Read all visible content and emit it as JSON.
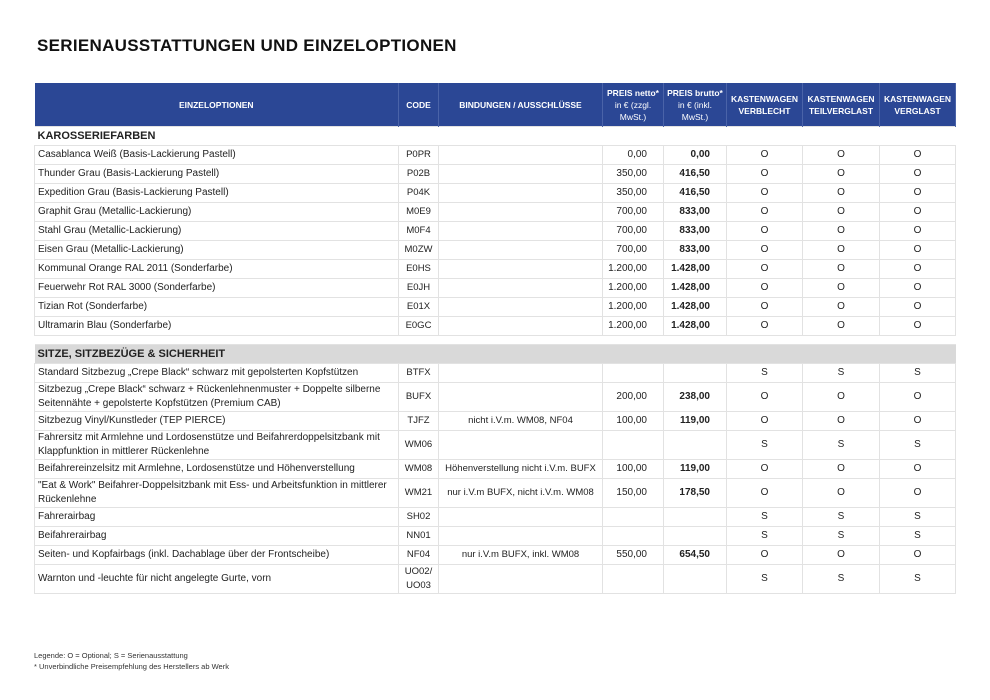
{
  "header": {
    "title": "SERIENAUSSTATTUNGEN UND EINZELOPTIONEN"
  },
  "table": {
    "headers": [
      {
        "label": "EINZELOPTIONEN"
      },
      {
        "label": "CODE"
      },
      {
        "label": "BINDUNGEN / AUSSCHLÜSSE"
      },
      {
        "label": "PREIS netto*",
        "note": "in € (zzgl. MwSt.)"
      },
      {
        "label": "PREIS brutto*",
        "note": "in € (inkl. MwSt.)"
      },
      {
        "label": "KASTENWAGEN VERBLECHT"
      },
      {
        "label": "KASTENWAGEN TEILVERGLAST"
      },
      {
        "label": "KASTENWAGEN VERGLAST"
      }
    ],
    "sections": [
      {
        "title": "KAROSSERIEFARBEN",
        "rows": [
          [
            "Casablanca Weiß (Basis-Lackierung Pastell)",
            "P0PR",
            null,
            "0,00",
            "0,00",
            "O",
            "O",
            "O"
          ],
          [
            "Thunder Grau (Basis-Lackierung Pastell)",
            "P02B",
            null,
            "350,00",
            "416,50",
            "O",
            "O",
            "O"
          ],
          [
            "Expedition Grau (Basis-Lackierung Pastell)",
            "P04K",
            null,
            "350,00",
            "416,50",
            "O",
            "O",
            "O"
          ],
          [
            "Graphit Grau (Metallic-Lackierung)",
            "M0E9",
            null,
            "700,00",
            "833,00",
            "O",
            "O",
            "O"
          ],
          [
            "Stahl Grau (Metallic-Lackierung)",
            "M0F4",
            null,
            "700,00",
            "833,00",
            "O",
            "O",
            "O"
          ],
          [
            "Eisen Grau (Metallic-Lackierung)",
            "M0ZW",
            null,
            "700,00",
            "833,00",
            "O",
            "O",
            "O"
          ],
          [
            "Kommunal Orange RAL 2011 (Sonderfarbe)",
            "E0HS",
            null,
            "1.200,00",
            "1.428,00",
            "O",
            "O",
            "O"
          ],
          [
            "Feuerwehr Rot RAL 3000 (Sonderfarbe)",
            "E0JH",
            null,
            "1.200,00",
            "1.428,00",
            "O",
            "O",
            "O"
          ],
          [
            "Tizian Rot (Sonderfarbe)",
            "E01X",
            null,
            "1.200,00",
            "1.428,00",
            "O",
            "O",
            "O"
          ],
          [
            "Ultramarin Blau (Sonderfarbe)",
            "E0GC",
            null,
            "1.200,00",
            "1.428,00",
            "O",
            "O",
            "O"
          ]
        ]
      },
      {
        "title": "SITZE, SITZBEZÜGE & SICHERHEIT",
        "rows": [
          [
            "Standard Sitzbezug „Crepe Black“ schwarz mit gepolsterten Kopfstützen",
            "BTFX",
            null,
            null,
            null,
            "S",
            "S",
            "S"
          ],
          [
            "Sitzbezug „Crepe Black“ schwarz + Rückenlehnenmuster + Doppelte silberne Seitennähte + gepolsterte Kopfstützen (Premium CAB)",
            "BUFX",
            null,
            "200,00",
            "238,00",
            "O",
            "O",
            "O"
          ],
          [
            "Sitzbezug Vinyl/Kunstleder (TEP PIERCE)",
            "TJFZ",
            "nicht i.V.m. WM08, NF04",
            "100,00",
            "119,00",
            "O",
            "O",
            "O"
          ],
          [
            "Fahrersitz mit Armlehne und Lordosenstütze und Beifahrerdoppelsitzbank mit Klappfunktion in mittlerer Rückenlehne",
            "WM06",
            null,
            null,
            null,
            "S",
            "S",
            "S"
          ],
          [
            "Beifahrereinzelsitz mit Armlehne, Lordosenstütze und Höhenverstellung",
            "WM08",
            "Höhenverstellung nicht i.V.m. BUFX",
            "100,00",
            "119,00",
            "O",
            "O",
            "O"
          ],
          [
            "\"Eat & Work\" Beifahrer-Doppelsitzbank mit Ess- und Arbeitsfunktion in mittlerer Rückenlehne",
            "WM21",
            "nur i.V.m BUFX, nicht i.V.m. WM08",
            "150,00",
            "178,50",
            "O",
            "O",
            "O"
          ],
          [
            "Fahrerairbag",
            "SH02",
            null,
            null,
            null,
            "S",
            "S",
            "S"
          ],
          [
            "Beifahrerairbag",
            "NN01",
            null,
            null,
            null,
            "S",
            "S",
            "S"
          ],
          [
            "Seiten- und Kopfairbags (inkl. Dachablage über der Frontscheibe)",
            "NF04",
            "nur i.V.m BUFX, inkl. WM08",
            "550,00",
            "654,50",
            "O",
            "O",
            "O"
          ],
          [
            "Warnton und -leuchte für nicht angelegte Gurte, vorn",
            "UO02/ UO03",
            null,
            null,
            null,
            "S",
            "S",
            "S"
          ]
        ]
      }
    ]
  },
  "footer": {
    "legend": "Legende: O = Optional; S = Serienausstattung",
    "note": "* Unverbindliche Preisempfehlung des Herstellers ab Werk"
  }
}
